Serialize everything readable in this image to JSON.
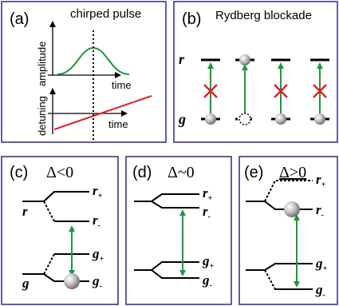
{
  "panels": {
    "a": {
      "label": "(a)",
      "title": "chirped pulse",
      "upper_ylabel": "amplitude",
      "upper_xlabel": "time",
      "lower_ylabel": "detuning",
      "lower_xlabel": "time"
    },
    "b": {
      "label": "(b)",
      "title": "Rydberg blockade",
      "level_r": "r",
      "level_g": "g"
    },
    "c": {
      "label": "(c)",
      "condition": "Δ<0",
      "level_r": "r",
      "level_g": "g",
      "r_plus": "r",
      "r_minus": "r",
      "g_plus": "g",
      "g_minus": "g",
      "plus_sub": "+",
      "minus_sub": "-"
    },
    "d": {
      "label": "(d)",
      "condition": "Δ~0",
      "r_plus": "r",
      "r_minus": "r",
      "g_plus": "g",
      "g_minus": "g",
      "plus_sub": "+",
      "minus_sub": "-"
    },
    "e": {
      "label": "(e)",
      "condition": "Δ>0",
      "r_plus": "r",
      "r_minus": "r",
      "g_plus": "g",
      "g_minus": "g",
      "plus_sub": "+",
      "minus_sub": "-"
    }
  },
  "colors": {
    "frame": "#2b2b7a",
    "pulse": "#1a9a3a",
    "detuning": "#e0202a",
    "arrow": "#1a9a3a",
    "cross": "#e0202a",
    "atom": "#9a9a9a"
  }
}
